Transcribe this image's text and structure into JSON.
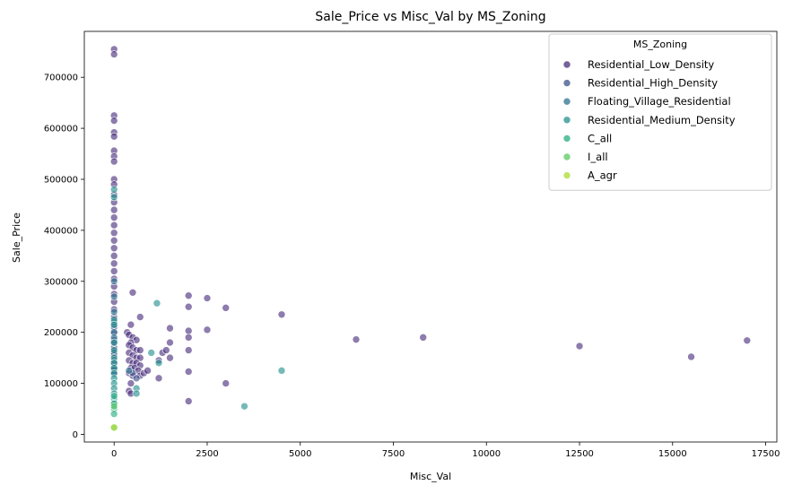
{
  "chart_data": {
    "type": "scatter",
    "title": "Sale_Price vs Misc_Val by MS_Zoning",
    "xlabel": "Misc_Val",
    "ylabel": "Sale_Price",
    "xlim": [
      -800,
      17800
    ],
    "ylim": [
      -15000,
      790000
    ],
    "xticks": [
      0,
      2500,
      5000,
      7500,
      10000,
      12500,
      15000,
      17500
    ],
    "yticks": [
      0,
      100000,
      200000,
      300000,
      400000,
      500000,
      600000,
      700000
    ],
    "grid": false,
    "legend": {
      "title": "MS_Zoning",
      "placement": "top-right",
      "entries": [
        {
          "label": "Residential_Low_Density",
          "color": "#472c7a"
        },
        {
          "label": "Residential_High_Density",
          "color": "#3b518b"
        },
        {
          "label": "Floating_Village_Residential",
          "color": "#2c718e"
        },
        {
          "label": "Residential_Medium_Density",
          "color": "#21908d"
        },
        {
          "label": "C_all",
          "color": "#27ad81"
        },
        {
          "label": "I_all",
          "color": "#5cc863"
        },
        {
          "label": "A_agr",
          "color": "#aadc32"
        }
      ]
    },
    "series": [
      {
        "name": "Residential_Low_Density",
        "points": [
          [
            0,
            755000
          ],
          [
            0,
            745000
          ],
          [
            0,
            625000
          ],
          [
            0,
            615000
          ],
          [
            0,
            592000
          ],
          [
            0,
            584000
          ],
          [
            0,
            556000
          ],
          [
            0,
            545000
          ],
          [
            0,
            535000
          ],
          [
            0,
            500000
          ],
          [
            0,
            490000
          ],
          [
            0,
            470000
          ],
          [
            0,
            455000
          ],
          [
            0,
            440000
          ],
          [
            0,
            425000
          ],
          [
            0,
            410000
          ],
          [
            0,
            395000
          ],
          [
            0,
            380000
          ],
          [
            0,
            365000
          ],
          [
            0,
            350000
          ],
          [
            0,
            335000
          ],
          [
            0,
            320000
          ],
          [
            0,
            305000
          ],
          [
            0,
            290000
          ],
          [
            0,
            275000
          ],
          [
            0,
            260000
          ],
          [
            0,
            245000
          ],
          [
            0,
            230000
          ],
          [
            0,
            215000
          ],
          [
            0,
            200000
          ],
          [
            0,
            185000
          ],
          [
            0,
            170000
          ],
          [
            0,
            155000
          ],
          [
            0,
            140000
          ],
          [
            0,
            125000
          ],
          [
            500,
            278000
          ],
          [
            700,
            230000
          ],
          [
            450,
            215000
          ],
          [
            350,
            200000
          ],
          [
            400,
            195000
          ],
          [
            500,
            190000
          ],
          [
            600,
            185000
          ],
          [
            450,
            180000
          ],
          [
            400,
            175000
          ],
          [
            500,
            170000
          ],
          [
            600,
            165000
          ],
          [
            700,
            165000
          ],
          [
            400,
            160000
          ],
          [
            500,
            155000
          ],
          [
            600,
            150000
          ],
          [
            700,
            150000
          ],
          [
            400,
            145000
          ],
          [
            500,
            140000
          ],
          [
            600,
            140000
          ],
          [
            700,
            135000
          ],
          [
            450,
            130000
          ],
          [
            550,
            130000
          ],
          [
            650,
            125000
          ],
          [
            400,
            120000
          ],
          [
            500,
            115000
          ],
          [
            700,
            115000
          ],
          [
            450,
            100000
          ],
          [
            400,
            85000
          ],
          [
            450,
            80000
          ],
          [
            800,
            120000
          ],
          [
            900,
            125000
          ],
          [
            1200,
            110000
          ],
          [
            1200,
            145000
          ],
          [
            1300,
            160000
          ],
          [
            1400,
            165000
          ],
          [
            1500,
            208000
          ],
          [
            1500,
            180000
          ],
          [
            1500,
            150000
          ],
          [
            2000,
            272000
          ],
          [
            2000,
            250000
          ],
          [
            2000,
            203000
          ],
          [
            2000,
            190000
          ],
          [
            2000,
            165000
          ],
          [
            2000,
            123000
          ],
          [
            2000,
            65000
          ],
          [
            2500,
            267000
          ],
          [
            2500,
            205000
          ],
          [
            3000,
            248000
          ],
          [
            3000,
            100000
          ],
          [
            4500,
            235000
          ],
          [
            6500,
            186000
          ],
          [
            8300,
            190000
          ],
          [
            12500,
            173000
          ],
          [
            15500,
            152000
          ],
          [
            17000,
            184000
          ]
        ]
      },
      {
        "name": "Residential_High_Density",
        "points": [
          [
            0,
            210000
          ],
          [
            0,
            180000
          ],
          [
            0,
            160000
          ],
          [
            0,
            145000
          ],
          [
            0,
            130000
          ],
          [
            0,
            118000
          ],
          [
            500,
            120000
          ],
          [
            600,
            110000
          ]
        ]
      },
      {
        "name": "Floating_Village_Residential",
        "points": [
          [
            0,
            300000
          ],
          [
            0,
            270000
          ],
          [
            0,
            240000
          ],
          [
            0,
            220000
          ],
          [
            0,
            200000
          ],
          [
            0,
            190000
          ],
          [
            400,
            125000
          ]
        ]
      },
      {
        "name": "Residential_Medium_Density",
        "points": [
          [
            0,
            480000
          ],
          [
            0,
            465000
          ],
          [
            0,
            225000
          ],
          [
            0,
            215000
          ],
          [
            0,
            180000
          ],
          [
            0,
            165000
          ],
          [
            0,
            150000
          ],
          [
            0,
            140000
          ],
          [
            0,
            130000
          ],
          [
            0,
            120000
          ],
          [
            0,
            110000
          ],
          [
            0,
            100000
          ],
          [
            0,
            90000
          ],
          [
            0,
            80000
          ],
          [
            0,
            70000
          ],
          [
            0,
            60000
          ],
          [
            1150,
            257000
          ],
          [
            1200,
            140000
          ],
          [
            1000,
            160000
          ],
          [
            600,
            90000
          ],
          [
            600,
            80000
          ],
          [
            4500,
            125000
          ],
          [
            3500,
            55000
          ]
        ]
      },
      {
        "name": "C_all",
        "points": [
          [
            0,
            75000
          ],
          [
            0,
            60000
          ],
          [
            0,
            50000
          ],
          [
            0,
            40000
          ]
        ]
      },
      {
        "name": "I_all",
        "points": [
          [
            0,
            55000
          ],
          [
            0,
            13000
          ]
        ]
      },
      {
        "name": "A_agr",
        "points": [
          [
            0,
            13500
          ]
        ]
      }
    ]
  }
}
